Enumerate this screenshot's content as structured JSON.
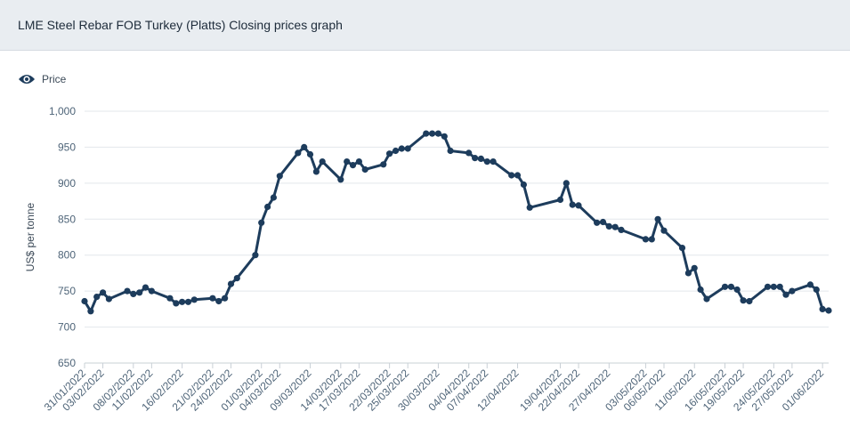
{
  "header": {
    "title": "LME Steel Rebar FOB Turkey (Platts) Closing prices graph"
  },
  "legend": {
    "label": "Price",
    "icon": "eye-icon"
  },
  "colors": {
    "line": "#1d3c5c",
    "grid": "#e3e7eb",
    "axis_text": "#3c4a58",
    "tick_text": "#4e6478",
    "header_bg": "#e9edf1"
  },
  "chart_data": {
    "type": "line",
    "title": "LME Steel Rebar FOB Turkey (Platts) Closing prices graph",
    "xlabel": "",
    "ylabel": "US$ per tonne",
    "ylim": [
      650,
      1000
    ],
    "yticks": [
      650,
      700,
      750,
      800,
      850,
      900,
      950,
      1000
    ],
    "ytick_labels": [
      "650",
      "700",
      "750",
      "800",
      "850",
      "900",
      "950",
      "1,000"
    ],
    "grid": true,
    "legend_position": "top-left",
    "xtick_labels": [
      "31/01/2022",
      "03/02/2022",
      "08/02/2022",
      "11/02/2022",
      "16/02/2022",
      "21/02/2022",
      "24/02/2022",
      "01/03/2022",
      "04/03/2022",
      "09/03/2022",
      "14/03/2022",
      "17/03/2022",
      "22/03/2022",
      "25/03/2022",
      "30/03/2022",
      "04/04/2022",
      "07/04/2022",
      "12/04/2022",
      "19/04/2022",
      "22/04/2022",
      "27/04/2022",
      "03/05/2022",
      "06/05/2022",
      "11/05/2022",
      "16/05/2022",
      "19/05/2022",
      "24/05/2022",
      "27/05/2022",
      "01/06/2022"
    ],
    "series": [
      {
        "name": "Price",
        "x": [
          "31/01/2022",
          "01/02/2022",
          "02/02/2022",
          "03/02/2022",
          "04/02/2022",
          "07/02/2022",
          "08/02/2022",
          "09/02/2022",
          "10/02/2022",
          "11/02/2022",
          "14/02/2022",
          "15/02/2022",
          "16/02/2022",
          "17/02/2022",
          "18/02/2022",
          "21/02/2022",
          "22/02/2022",
          "23/02/2022",
          "24/02/2022",
          "25/02/2022",
          "28/02/2022",
          "01/03/2022",
          "02/03/2022",
          "03/03/2022",
          "04/03/2022",
          "07/03/2022",
          "08/03/2022",
          "09/03/2022",
          "10/03/2022",
          "11/03/2022",
          "14/03/2022",
          "15/03/2022",
          "16/03/2022",
          "17/03/2022",
          "18/03/2022",
          "21/03/2022",
          "22/03/2022",
          "23/03/2022",
          "24/03/2022",
          "25/03/2022",
          "28/03/2022",
          "29/03/2022",
          "30/03/2022",
          "31/03/2022",
          "01/04/2022",
          "04/04/2022",
          "05/04/2022",
          "06/04/2022",
          "07/04/2022",
          "08/04/2022",
          "11/04/2022",
          "12/04/2022",
          "13/04/2022",
          "14/04/2022",
          "19/04/2022",
          "20/04/2022",
          "21/04/2022",
          "22/04/2022",
          "25/04/2022",
          "26/04/2022",
          "27/04/2022",
          "28/04/2022",
          "29/04/2022",
          "03/05/2022",
          "04/05/2022",
          "05/05/2022",
          "06/05/2022",
          "09/05/2022",
          "10/05/2022",
          "11/05/2022",
          "12/05/2022",
          "13/05/2022",
          "16/05/2022",
          "17/05/2022",
          "18/05/2022",
          "19/05/2022",
          "20/05/2022",
          "23/05/2022",
          "24/05/2022",
          "25/05/2022",
          "26/05/2022",
          "27/05/2022",
          "30/05/2022",
          "31/05/2022",
          "01/06/2022",
          "02/06/2022"
        ],
        "values": [
          736,
          722,
          742,
          748,
          739,
          750,
          746,
          748,
          755,
          750,
          740,
          733,
          735,
          735,
          738,
          740,
          736,
          740,
          760,
          768,
          800,
          845,
          867,
          880,
          910,
          942,
          950,
          940,
          916,
          930,
          905,
          930,
          925,
          930,
          919,
          926,
          941,
          945,
          948,
          948,
          969,
          969,
          969,
          965,
          945,
          942,
          935,
          934,
          930,
          930,
          911,
          911,
          898,
          866,
          877,
          900,
          870,
          869,
          845,
          846,
          840,
          839,
          835,
          822,
          822,
          850,
          834,
          810,
          775,
          782,
          752,
          739,
          756,
          756,
          752,
          737,
          736,
          756,
          756,
          756,
          745,
          750,
          759,
          752,
          725,
          723
        ]
      }
    ]
  }
}
